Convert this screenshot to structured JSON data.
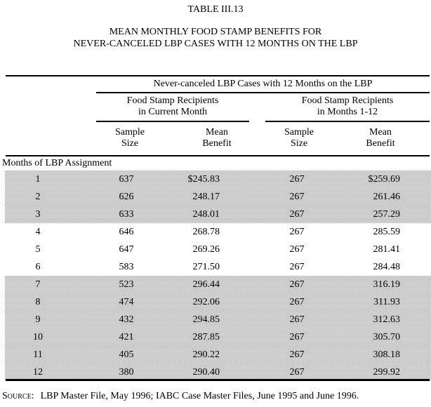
{
  "page": {
    "table_number": "TABLE III.13",
    "title_line1": "MEAN MONTHLY FOOD STAMP BENEFITS FOR",
    "title_line2": "NEVER-CANCELED LBP CASES WITH 12 MONTHS ON THE LBP",
    "source_label": "Source:",
    "source_text": "LBP Master File, May 1996; IABC Case Master Files, June 1995 and June 1996."
  },
  "colors": {
    "row_shading": "#d6d6d6",
    "rule": "#000000",
    "text": "#000000",
    "page_background": "#ffffff"
  },
  "table": {
    "spanner": "Never-canceled LBP Cases with 12 Months on the LBP",
    "group1": {
      "line1": "Food Stamp Recipients",
      "line2": "in Current Month"
    },
    "group2": {
      "line1": "Food Stamp Recipients",
      "line2": "in Months 1-12"
    },
    "col_headers": {
      "sample": {
        "line1": "Sample",
        "line2": "Size"
      },
      "mean": {
        "line1": "Mean",
        "line2": "Benefit"
      }
    },
    "stub_label": "Months of LBP Assignment",
    "rows": [
      {
        "month": "1",
        "sample_current": "637",
        "benefit_current": "$245.83",
        "sample_months_1_12": "267",
        "benefit_months_1_12": "$259.69"
      },
      {
        "month": "2",
        "sample_current": "626",
        "benefit_current": "248.17",
        "sample_months_1_12": "267",
        "benefit_months_1_12": "261.46"
      },
      {
        "month": "3",
        "sample_current": "633",
        "benefit_current": "248.01",
        "sample_months_1_12": "267",
        "benefit_months_1_12": "257.29"
      },
      {
        "month": "4",
        "sample_current": "646",
        "benefit_current": "268.78",
        "sample_months_1_12": "267",
        "benefit_months_1_12": "285.59"
      },
      {
        "month": "5",
        "sample_current": "647",
        "benefit_current": "269.26",
        "sample_months_1_12": "267",
        "benefit_months_1_12": "281.41"
      },
      {
        "month": "6",
        "sample_current": "583",
        "benefit_current": "271.50",
        "sample_months_1_12": "267",
        "benefit_months_1_12": "284.48"
      },
      {
        "month": "7",
        "sample_current": "523",
        "benefit_current": "296.44",
        "sample_months_1_12": "267",
        "benefit_months_1_12": "316.19"
      },
      {
        "month": "8",
        "sample_current": "474",
        "benefit_current": "292.06",
        "sample_months_1_12": "267",
        "benefit_months_1_12": "311.93"
      },
      {
        "month": "9",
        "sample_current": "432",
        "benefit_current": "294.85",
        "sample_months_1_12": "267",
        "benefit_months_1_12": "312.63"
      },
      {
        "month": "10",
        "sample_current": "421",
        "benefit_current": "287.85",
        "sample_months_1_12": "267",
        "benefit_months_1_12": "305.70"
      },
      {
        "month": "11",
        "sample_current": "405",
        "benefit_current": "290.22",
        "sample_months_1_12": "267",
        "benefit_months_1_12": "308.18"
      },
      {
        "month": "12",
        "sample_current": "380",
        "benefit_current": "290.40",
        "sample_months_1_12": "267",
        "benefit_months_1_12": "299.92"
      }
    ]
  }
}
